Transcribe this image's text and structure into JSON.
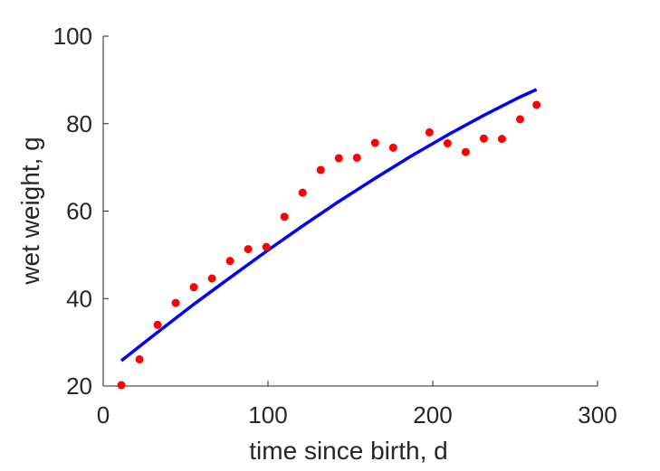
{
  "chart_data": {
    "type": "scatter",
    "title": "",
    "xlabel": "time since birth, d",
    "ylabel": "wet weight, g",
    "xlim": [
      0,
      300
    ],
    "ylim": [
      20,
      100
    ],
    "xticks": [
      0,
      100,
      200,
      300
    ],
    "yticks": [
      20,
      40,
      60,
      80,
      100
    ],
    "grid": false,
    "series": [
      {
        "kind": "points",
        "color": "#ff0000",
        "x": [
          11,
          22,
          33,
          44,
          55,
          66,
          77,
          88,
          99,
          110,
          121,
          132,
          143,
          154,
          165,
          176,
          198,
          209,
          220,
          231,
          242,
          253,
          263
        ],
        "y": [
          20.2,
          26.1,
          34.0,
          39.0,
          42.6,
          44.6,
          48.6,
          51.3,
          51.8,
          58.7,
          64.2,
          69.4,
          72.1,
          72.2,
          75.6,
          74.5,
          78.0,
          75.5,
          73.5,
          76.6,
          76.5,
          81.0,
          84.3
        ]
      },
      {
        "kind": "line",
        "color": "#0000ff",
        "x": [
          11,
          33,
          55,
          77,
          99,
          121,
          143,
          165,
          187,
          209,
          231,
          253,
          263
        ],
        "y": [
          25.8,
          32.3,
          38.7,
          44.8,
          50.8,
          56.6,
          62.2,
          67.5,
          72.6,
          77.4,
          81.9,
          86.1,
          87.8
        ]
      }
    ]
  }
}
